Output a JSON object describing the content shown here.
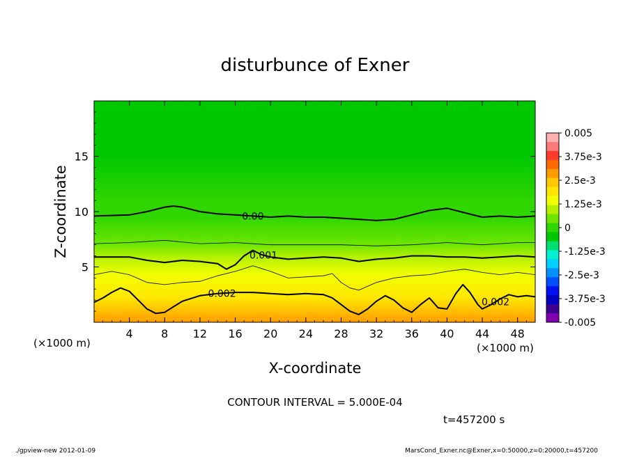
{
  "chart_data": {
    "type": "heatmap",
    "title": "disturbunce of Exner",
    "xlabel": "X-coordinate",
    "ylabel": "Z-coordinate",
    "x_unit": "(×1000 m)",
    "z_unit": "(×1000 m)",
    "xlim": [
      0,
      50
    ],
    "ylim": [
      0,
      20
    ],
    "x_ticks": [
      4,
      8,
      12,
      16,
      20,
      24,
      28,
      32,
      36,
      40,
      44,
      48
    ],
    "y_ticks": [
      5,
      10,
      15
    ],
    "colorbar": {
      "min": -0.005,
      "max": 0.005,
      "tick_values": [
        0.005,
        0.00375,
        0.0025,
        0.00125,
        0,
        -0.00125,
        -0.0025,
        -0.00375,
        -0.005
      ],
      "tick_labels": [
        "0.005",
        "3.75e-3",
        "2.5e-3",
        "1.25e-3",
        "0",
        "-1.25e-3",
        "-2.5e-3",
        "-3.75e-3",
        "-0.005"
      ],
      "colors_top_to_bottom": [
        "#ffb0b0",
        "#ff7a7a",
        "#ff3c2a",
        "#ff6a00",
        "#ff9c00",
        "#ffc800",
        "#ffe600",
        "#f2ff00",
        "#b4f000",
        "#6ee600",
        "#2fd600",
        "#00c800",
        "#00e070",
        "#00f0d0",
        "#00d0ff",
        "#0090ff",
        "#0050ff",
        "#0010f0",
        "#0000c0",
        "#3c0090",
        "#8000b0"
      ]
    },
    "contour_lines": [
      {
        "level": 0.0,
        "label": "0.00",
        "style": "thick",
        "points": [
          [
            0,
            9.6
          ],
          [
            4,
            9.7
          ],
          [
            6,
            10.0
          ],
          [
            8,
            10.4
          ],
          [
            9,
            10.5
          ],
          [
            10,
            10.4
          ],
          [
            12,
            10.0
          ],
          [
            14,
            9.8
          ],
          [
            16,
            9.7
          ],
          [
            18,
            9.6
          ],
          [
            20,
            9.5
          ],
          [
            22,
            9.6
          ],
          [
            24,
            9.5
          ],
          [
            26,
            9.5
          ],
          [
            28,
            9.4
          ],
          [
            30,
            9.3
          ],
          [
            32,
            9.2
          ],
          [
            34,
            9.3
          ],
          [
            36,
            9.7
          ],
          [
            38,
            10.1
          ],
          [
            40,
            10.3
          ],
          [
            42,
            9.9
          ],
          [
            44,
            9.5
          ],
          [
            46,
            9.6
          ],
          [
            48,
            9.5
          ],
          [
            50,
            9.6
          ]
        ]
      },
      {
        "level": 0.0005,
        "label": "",
        "style": "thin",
        "points": [
          [
            0,
            7.1
          ],
          [
            4,
            7.2
          ],
          [
            8,
            7.4
          ],
          [
            12,
            7.1
          ],
          [
            16,
            7.2
          ],
          [
            20,
            7.0
          ],
          [
            24,
            7.0
          ],
          [
            28,
            7.0
          ],
          [
            32,
            6.9
          ],
          [
            36,
            7.0
          ],
          [
            40,
            7.2
          ],
          [
            44,
            7.0
          ],
          [
            48,
            7.2
          ],
          [
            50,
            7.2
          ]
        ]
      },
      {
        "level": 0.001,
        "label": "0.001",
        "style": "thick",
        "points": [
          [
            0,
            5.9
          ],
          [
            4,
            5.9
          ],
          [
            6,
            5.6
          ],
          [
            8,
            5.4
          ],
          [
            10,
            5.6
          ],
          [
            12,
            5.5
          ],
          [
            14,
            5.3
          ],
          [
            15,
            4.8
          ],
          [
            16,
            5.2
          ],
          [
            17,
            6.0
          ],
          [
            18,
            6.5
          ],
          [
            19,
            6.1
          ],
          [
            20,
            5.9
          ],
          [
            22,
            5.7
          ],
          [
            24,
            5.8
          ],
          [
            26,
            5.9
          ],
          [
            28,
            5.8
          ],
          [
            30,
            5.5
          ],
          [
            32,
            5.7
          ],
          [
            34,
            5.8
          ],
          [
            36,
            6.0
          ],
          [
            38,
            6.0
          ],
          [
            40,
            5.9
          ],
          [
            42,
            5.9
          ],
          [
            44,
            5.8
          ],
          [
            46,
            5.9
          ],
          [
            48,
            6.0
          ],
          [
            50,
            5.9
          ]
        ]
      },
      {
        "level": 0.0015,
        "label": "",
        "style": "thin",
        "points": [
          [
            0,
            4.3
          ],
          [
            2,
            4.6
          ],
          [
            4,
            4.3
          ],
          [
            6,
            3.6
          ],
          [
            8,
            3.4
          ],
          [
            10,
            3.6
          ],
          [
            12,
            3.7
          ],
          [
            14,
            4.2
          ],
          [
            16,
            4.6
          ],
          [
            18,
            5.1
          ],
          [
            20,
            4.6
          ],
          [
            22,
            4.0
          ],
          [
            24,
            4.1
          ],
          [
            26,
            4.2
          ],
          [
            27,
            4.4
          ],
          [
            28,
            3.6
          ],
          [
            29,
            3.1
          ],
          [
            30,
            2.9
          ],
          [
            32,
            3.6
          ],
          [
            34,
            4.0
          ],
          [
            36,
            4.2
          ],
          [
            38,
            4.3
          ],
          [
            40,
            4.6
          ],
          [
            42,
            4.8
          ],
          [
            44,
            4.5
          ],
          [
            46,
            4.3
          ],
          [
            48,
            4.5
          ],
          [
            50,
            4.3
          ]
        ]
      },
      {
        "level": 0.002,
        "label": "0.002",
        "style": "thick",
        "points": [
          [
            0,
            1.8
          ],
          [
            1,
            2.2
          ],
          [
            2,
            2.7
          ],
          [
            3,
            3.1
          ],
          [
            4,
            2.8
          ],
          [
            5,
            2.0
          ],
          [
            6,
            1.2
          ],
          [
            7,
            0.8
          ],
          [
            8,
            0.9
          ],
          [
            9,
            1.4
          ],
          [
            10,
            1.9
          ],
          [
            12,
            2.4
          ],
          [
            14,
            2.6
          ],
          [
            16,
            2.7
          ],
          [
            18,
            2.7
          ],
          [
            20,
            2.6
          ],
          [
            22,
            2.5
          ],
          [
            24,
            2.6
          ],
          [
            26,
            2.5
          ],
          [
            27,
            2.2
          ],
          [
            28,
            1.6
          ],
          [
            29,
            1.0
          ],
          [
            30,
            0.7
          ],
          [
            31,
            1.2
          ],
          [
            32,
            1.9
          ],
          [
            33,
            2.4
          ],
          [
            34,
            2.0
          ],
          [
            35,
            1.3
          ],
          [
            36,
            0.9
          ],
          [
            37,
            1.6
          ],
          [
            38,
            2.2
          ],
          [
            39,
            1.3
          ],
          [
            40,
            1.2
          ],
          [
            41,
            2.6
          ],
          [
            41.8,
            3.4
          ],
          [
            42.6,
            2.7
          ],
          [
            43.5,
            1.6
          ],
          [
            44,
            1.2
          ],
          [
            45,
            1.6
          ],
          [
            46,
            2.1
          ],
          [
            47,
            2.5
          ],
          [
            48,
            2.3
          ],
          [
            49,
            2.4
          ],
          [
            50,
            2.3
          ]
        ]
      }
    ],
    "color_bands": [
      {
        "z": 20.0,
        "value": -0.0003
      },
      {
        "z": 15.0,
        "value": -0.0004
      },
      {
        "z": 11.0,
        "value": -0.0001
      },
      {
        "z": 9.5,
        "value": 0.0
      },
      {
        "z": 7.0,
        "value": 0.0005
      },
      {
        "z": 5.9,
        "value": 0.001
      },
      {
        "z": 4.3,
        "value": 0.0015
      },
      {
        "z": 2.2,
        "value": 0.002
      },
      {
        "z": 0.0,
        "value": 0.0027
      }
    ],
    "contour_interval": "CONTOUR INTERVAL = 5.000E-04",
    "time_label": "t=457200 s"
  },
  "footer": {
    "left": "./gpview-new   2012-01-09",
    "right": "MarsCond_Exner.nc@Exner,x=0:50000,z=0:20000,t=457200"
  }
}
